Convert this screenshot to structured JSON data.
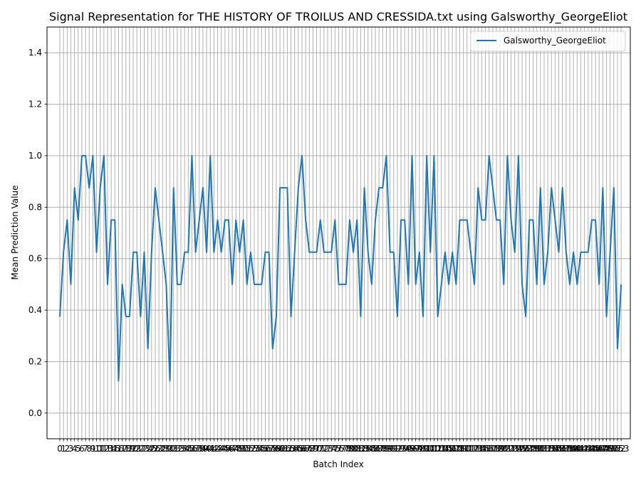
{
  "chart_data": {
    "type": "line",
    "title": "Signal Representation for THE HISTORY OF TROILUS AND CRESSIDA.txt using Galsworthy_GeorgeEliot",
    "xlabel": "Batch Index",
    "ylabel": "Mean Prediction Value",
    "xlim": [
      -3.5,
      155.5
    ],
    "ylim": [
      -0.1,
      1.5
    ],
    "yticks": [
      "0.0",
      "0.2",
      "0.4",
      "0.6",
      "0.8",
      "1.0",
      "1.2",
      "1.4"
    ],
    "grid": true,
    "legend_position": "top-right",
    "series": [
      {
        "name": "Galsworthy_GeorgeEliot",
        "color": "#1f77b4",
        "values": [
          0.375,
          0.625,
          0.75,
          0.5,
          0.875,
          0.75,
          1.0,
          1.0,
          0.875,
          1.0,
          0.625,
          0.875,
          1.0,
          0.5,
          0.75,
          0.75,
          0.125,
          0.5,
          0.375,
          0.375,
          0.625,
          0.625,
          0.375,
          0.625,
          0.25,
          0.625,
          0.875,
          0.75,
          0.625,
          0.5,
          0.125,
          0.875,
          0.5,
          0.5,
          0.625,
          0.625,
          1.0,
          0.625,
          0.75,
          0.875,
          0.625,
          1.0,
          0.625,
          0.75,
          0.625,
          0.75,
          0.75,
          0.5,
          0.75,
          0.625,
          0.75,
          0.5,
          0.625,
          0.5,
          0.5,
          0.5,
          0.625,
          0.625,
          0.25,
          0.375,
          0.875,
          0.875,
          0.875,
          0.375,
          0.625,
          0.875,
          1.0,
          0.75,
          0.625,
          0.625,
          0.625,
          0.75,
          0.625,
          0.625,
          0.625,
          0.75,
          0.5,
          0.5,
          0.5,
          0.75,
          0.625,
          0.75,
          0.375,
          0.875,
          0.625,
          0.5,
          0.75,
          0.875,
          0.875,
          1.0,
          0.625,
          0.625,
          0.375,
          0.75,
          0.75,
          0.5,
          1.0,
          0.5,
          0.625,
          0.375,
          1.0,
          0.625,
          1.0,
          0.375,
          0.5,
          0.625,
          0.5,
          0.625,
          0.5,
          0.75,
          0.75,
          0.75,
          0.625,
          0.5,
          0.875,
          0.75,
          0.75,
          1.0,
          0.875,
          0.75,
          0.75,
          0.5,
          1.0,
          0.75,
          0.625,
          1.0,
          0.5,
          0.375,
          0.75,
          0.75,
          0.5,
          0.875,
          0.5,
          0.625,
          0.875,
          0.75,
          0.625,
          0.875,
          0.625,
          0.5,
          0.625,
          0.5,
          0.625,
          0.625,
          0.625,
          0.75,
          0.75,
          0.5,
          0.875,
          0.375,
          0.625,
          0.875,
          0.25,
          0.5
        ]
      }
    ]
  }
}
